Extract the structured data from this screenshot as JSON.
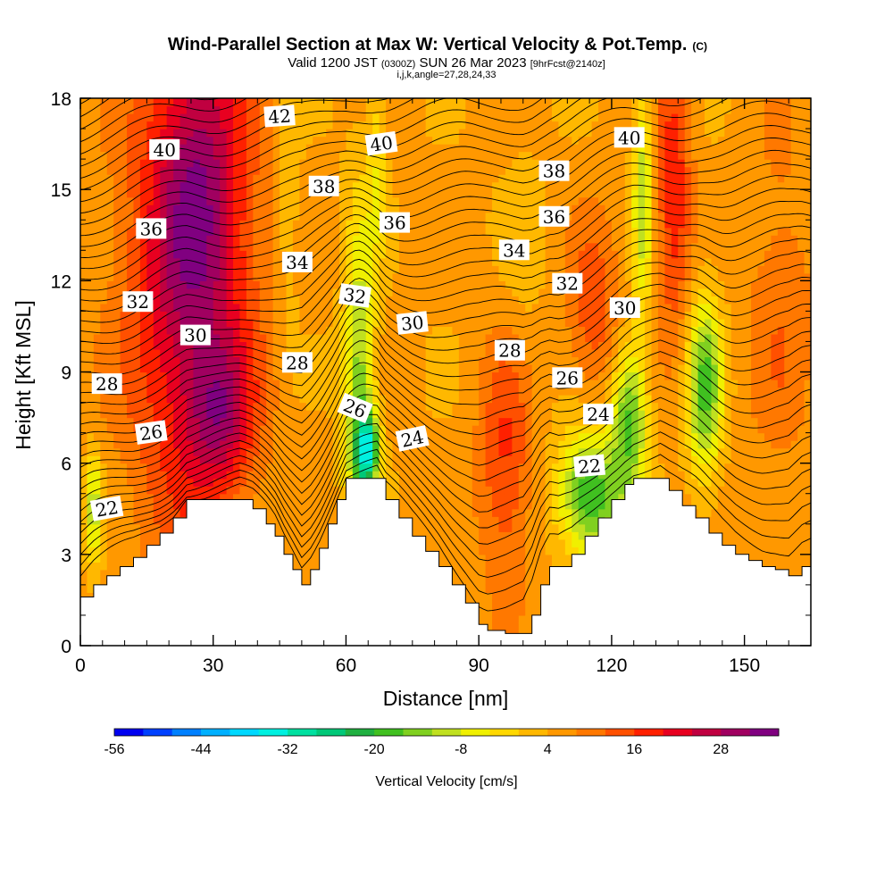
{
  "chart_data": {
    "type": "heatmap",
    "title": "Wind-Parallel Section at Max W: Vertical Velocity & Pot.Temp.",
    "title_mark": "(C)",
    "subtitle_parts": [
      "Valid 1200 JST",
      "(0300Z)",
      "SUN 26 Mar 2023",
      "[9hrFcst@2140z]"
    ],
    "subtitle2": "i,j,k,angle=27,28,24,33",
    "xlabel": "Distance [nm]",
    "ylabel": "Height [Kft MSL]",
    "xlim": [
      0,
      165
    ],
    "ylim": [
      0,
      18
    ],
    "x_ticks": [
      0,
      30,
      60,
      90,
      120,
      150
    ],
    "y_ticks": [
      0,
      3,
      6,
      9,
      12,
      15,
      18
    ],
    "colorbar": {
      "label": "Vertical Velocity [cm/s]",
      "min": -56,
      "max": 36,
      "step": 4,
      "tick_labels": [
        -56,
        -44,
        -32,
        -20,
        -8,
        4,
        16,
        28
      ],
      "colors": [
        "#0000f0",
        "#0040ff",
        "#0080ff",
        "#00b0ff",
        "#00d8ff",
        "#00f0e0",
        "#00e0a0",
        "#00c878",
        "#20b040",
        "#40c020",
        "#80d020",
        "#c0e020",
        "#f0f000",
        "#ffd800",
        "#ffb800",
        "#ff9800",
        "#ff7800",
        "#ff5000",
        "#ff2000",
        "#e80020",
        "#c00040",
        "#a00060",
        "#800080"
      ]
    },
    "terrain_kft": [
      [
        0,
        1.6
      ],
      [
        3,
        2.0
      ],
      [
        6,
        2.3
      ],
      [
        9,
        2.6
      ],
      [
        12,
        2.9
      ],
      [
        15,
        3.3
      ],
      [
        18,
        3.7
      ],
      [
        21,
        4.2
      ],
      [
        24,
        4.8
      ],
      [
        28,
        4.8
      ],
      [
        32,
        4.8
      ],
      [
        36,
        4.8
      ],
      [
        39,
        4.5
      ],
      [
        42,
        4.0
      ],
      [
        44,
        3.6
      ],
      [
        46,
        3.0
      ],
      [
        48,
        2.5
      ],
      [
        50,
        2.0
      ],
      [
        52,
        2.5
      ],
      [
        54,
        3.2
      ],
      [
        56,
        4.0
      ],
      [
        58,
        4.8
      ],
      [
        60,
        5.5
      ],
      [
        64,
        5.5
      ],
      [
        67,
        5.5
      ],
      [
        69,
        4.8
      ],
      [
        72,
        4.2
      ],
      [
        75,
        3.6
      ],
      [
        78,
        3.1
      ],
      [
        81,
        2.6
      ],
      [
        84,
        2.0
      ],
      [
        87,
        1.4
      ],
      [
        90,
        0.7
      ],
      [
        92,
        0.5
      ],
      [
        96,
        0.4
      ],
      [
        100,
        0.4
      ],
      [
        102,
        1.0
      ],
      [
        104,
        2.0
      ],
      [
        106,
        2.6
      ],
      [
        108,
        2.6
      ],
      [
        111,
        3.0
      ],
      [
        114,
        3.6
      ],
      [
        117,
        4.2
      ],
      [
        120,
        4.8
      ],
      [
        123,
        5.3
      ],
      [
        125,
        5.5
      ],
      [
        128,
        5.5
      ],
      [
        131,
        5.5
      ],
      [
        133,
        5.1
      ],
      [
        136,
        4.6
      ],
      [
        139,
        4.2
      ],
      [
        142,
        3.7
      ],
      [
        145,
        3.3
      ],
      [
        148,
        3.0
      ],
      [
        151,
        2.8
      ],
      [
        154,
        2.6
      ],
      [
        157,
        2.5
      ],
      [
        160,
        2.3
      ],
      [
        163,
        2.6
      ],
      [
        165,
        2.6
      ]
    ],
    "w_features": [
      {
        "x": 25,
        "y": 12.0,
        "sx": 14,
        "sy": 8.0,
        "w": 22
      },
      {
        "x": 32,
        "y": 7.5,
        "sx": 7,
        "sy": 2.2,
        "w": 14
      },
      {
        "x": 27,
        "y": 16.0,
        "sx": 9,
        "sy": 5.0,
        "w": 10
      },
      {
        "x": 63,
        "y": 8.0,
        "sx": 3.5,
        "sy": 6.0,
        "w": -20
      },
      {
        "x": 65,
        "y": 6.5,
        "sx": 2.5,
        "sy": 1.2,
        "w": -28
      },
      {
        "x": 67,
        "y": 16.0,
        "sx": 2.0,
        "sy": 3.5,
        "w": -8
      },
      {
        "x": 47,
        "y": 14.5,
        "sx": 3.0,
        "sy": 5.0,
        "w": -5
      },
      {
        "x": 3,
        "y": 4.5,
        "sx": 2.0,
        "sy": 1.8,
        "w": -16
      },
      {
        "x": 96,
        "y": 6.0,
        "sx": 6.0,
        "sy": 4.0,
        "w": 12
      },
      {
        "x": 100,
        "y": 13.0,
        "sx": 5.0,
        "sy": 4.0,
        "w": -3
      },
      {
        "x": 115,
        "y": 5.0,
        "sx": 7.0,
        "sy": 2.0,
        "w": -26
      },
      {
        "x": 124,
        "y": 7.5,
        "sx": 4.0,
        "sy": 2.5,
        "w": -22
      },
      {
        "x": 127,
        "y": 15.0,
        "sx": 2.2,
        "sy": 4.0,
        "w": -16
      },
      {
        "x": 141,
        "y": 8.5,
        "sx": 4.0,
        "sy": 3.0,
        "w": -22
      },
      {
        "x": 116,
        "y": 11.0,
        "sx": 6.0,
        "sy": 3.0,
        "w": 10
      },
      {
        "x": 134,
        "y": 15.0,
        "sx": 4.0,
        "sy": 5.0,
        "w": 14
      },
      {
        "x": 158,
        "y": 11.0,
        "sx": 8.0,
        "sy": 6.0,
        "w": 6
      }
    ],
    "theta_labels": [
      {
        "text": "42",
        "x": 45,
        "y": 17.4,
        "rot": -4
      },
      {
        "text": "40",
        "x": 19,
        "y": 16.3,
        "rot": 0
      },
      {
        "text": "40",
        "x": 68,
        "y": 16.5,
        "rot": -8
      },
      {
        "text": "40",
        "x": 124,
        "y": 16.7,
        "rot": 0
      },
      {
        "text": "38",
        "x": 55,
        "y": 15.1,
        "rot": 0
      },
      {
        "text": "38",
        "x": 107,
        "y": 15.6,
        "rot": 0
      },
      {
        "text": "36",
        "x": 16,
        "y": 13.7,
        "rot": 0
      },
      {
        "text": "36",
        "x": 71,
        "y": 13.9,
        "rot": 0
      },
      {
        "text": "36",
        "x": 107,
        "y": 14.1,
        "rot": 0
      },
      {
        "text": "34",
        "x": 49,
        "y": 12.6,
        "rot": 0
      },
      {
        "text": "34",
        "x": 98,
        "y": 13.0,
        "rot": 0
      },
      {
        "text": "32",
        "x": 13,
        "y": 11.3,
        "rot": 0
      },
      {
        "text": "32",
        "x": 62,
        "y": 11.5,
        "rot": 8
      },
      {
        "text": "32",
        "x": 110,
        "y": 11.9,
        "rot": 0
      },
      {
        "text": "30",
        "x": 26,
        "y": 10.2,
        "rot": 0
      },
      {
        "text": "30",
        "x": 75,
        "y": 10.6,
        "rot": -6
      },
      {
        "text": "30",
        "x": 123,
        "y": 11.1,
        "rot": 0
      },
      {
        "text": "28",
        "x": 6,
        "y": 8.6,
        "rot": 0
      },
      {
        "text": "28",
        "x": 49,
        "y": 9.3,
        "rot": 0
      },
      {
        "text": "28",
        "x": 97,
        "y": 9.7,
        "rot": 0
      },
      {
        "text": "26",
        "x": 16,
        "y": 7.0,
        "rot": -8
      },
      {
        "text": "26",
        "x": 62,
        "y": 7.8,
        "rot": 22
      },
      {
        "text": "26",
        "x": 110,
        "y": 8.8,
        "rot": 0
      },
      {
        "text": "24",
        "x": 75,
        "y": 6.8,
        "rot": -12
      },
      {
        "text": "24",
        "x": 117,
        "y": 7.6,
        "rot": 0
      },
      {
        "text": "22",
        "x": 6,
        "y": 4.5,
        "rot": -10
      },
      {
        "text": "22",
        "x": 115,
        "y": 5.9,
        "rot": -5
      }
    ]
  }
}
